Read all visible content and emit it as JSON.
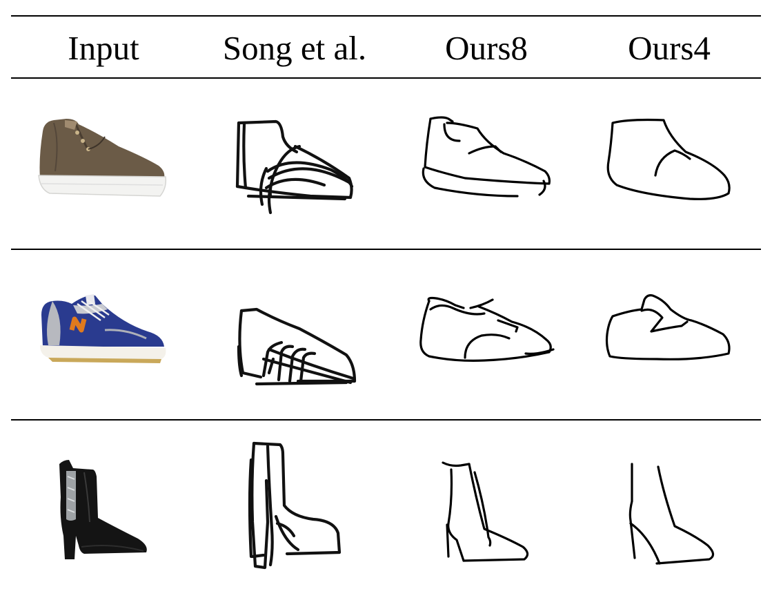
{
  "table": {
    "columns": [
      "Input",
      "Song et al.",
      "Ours8",
      "Ours4"
    ],
    "rows": [
      {
        "input_icon": "brown-chukka-boot-photo"
      },
      {
        "input_icon": "blue-orange-n-sneaker-photo"
      },
      {
        "input_icon": "black-heeled-ankle-boot-photo"
      }
    ]
  }
}
